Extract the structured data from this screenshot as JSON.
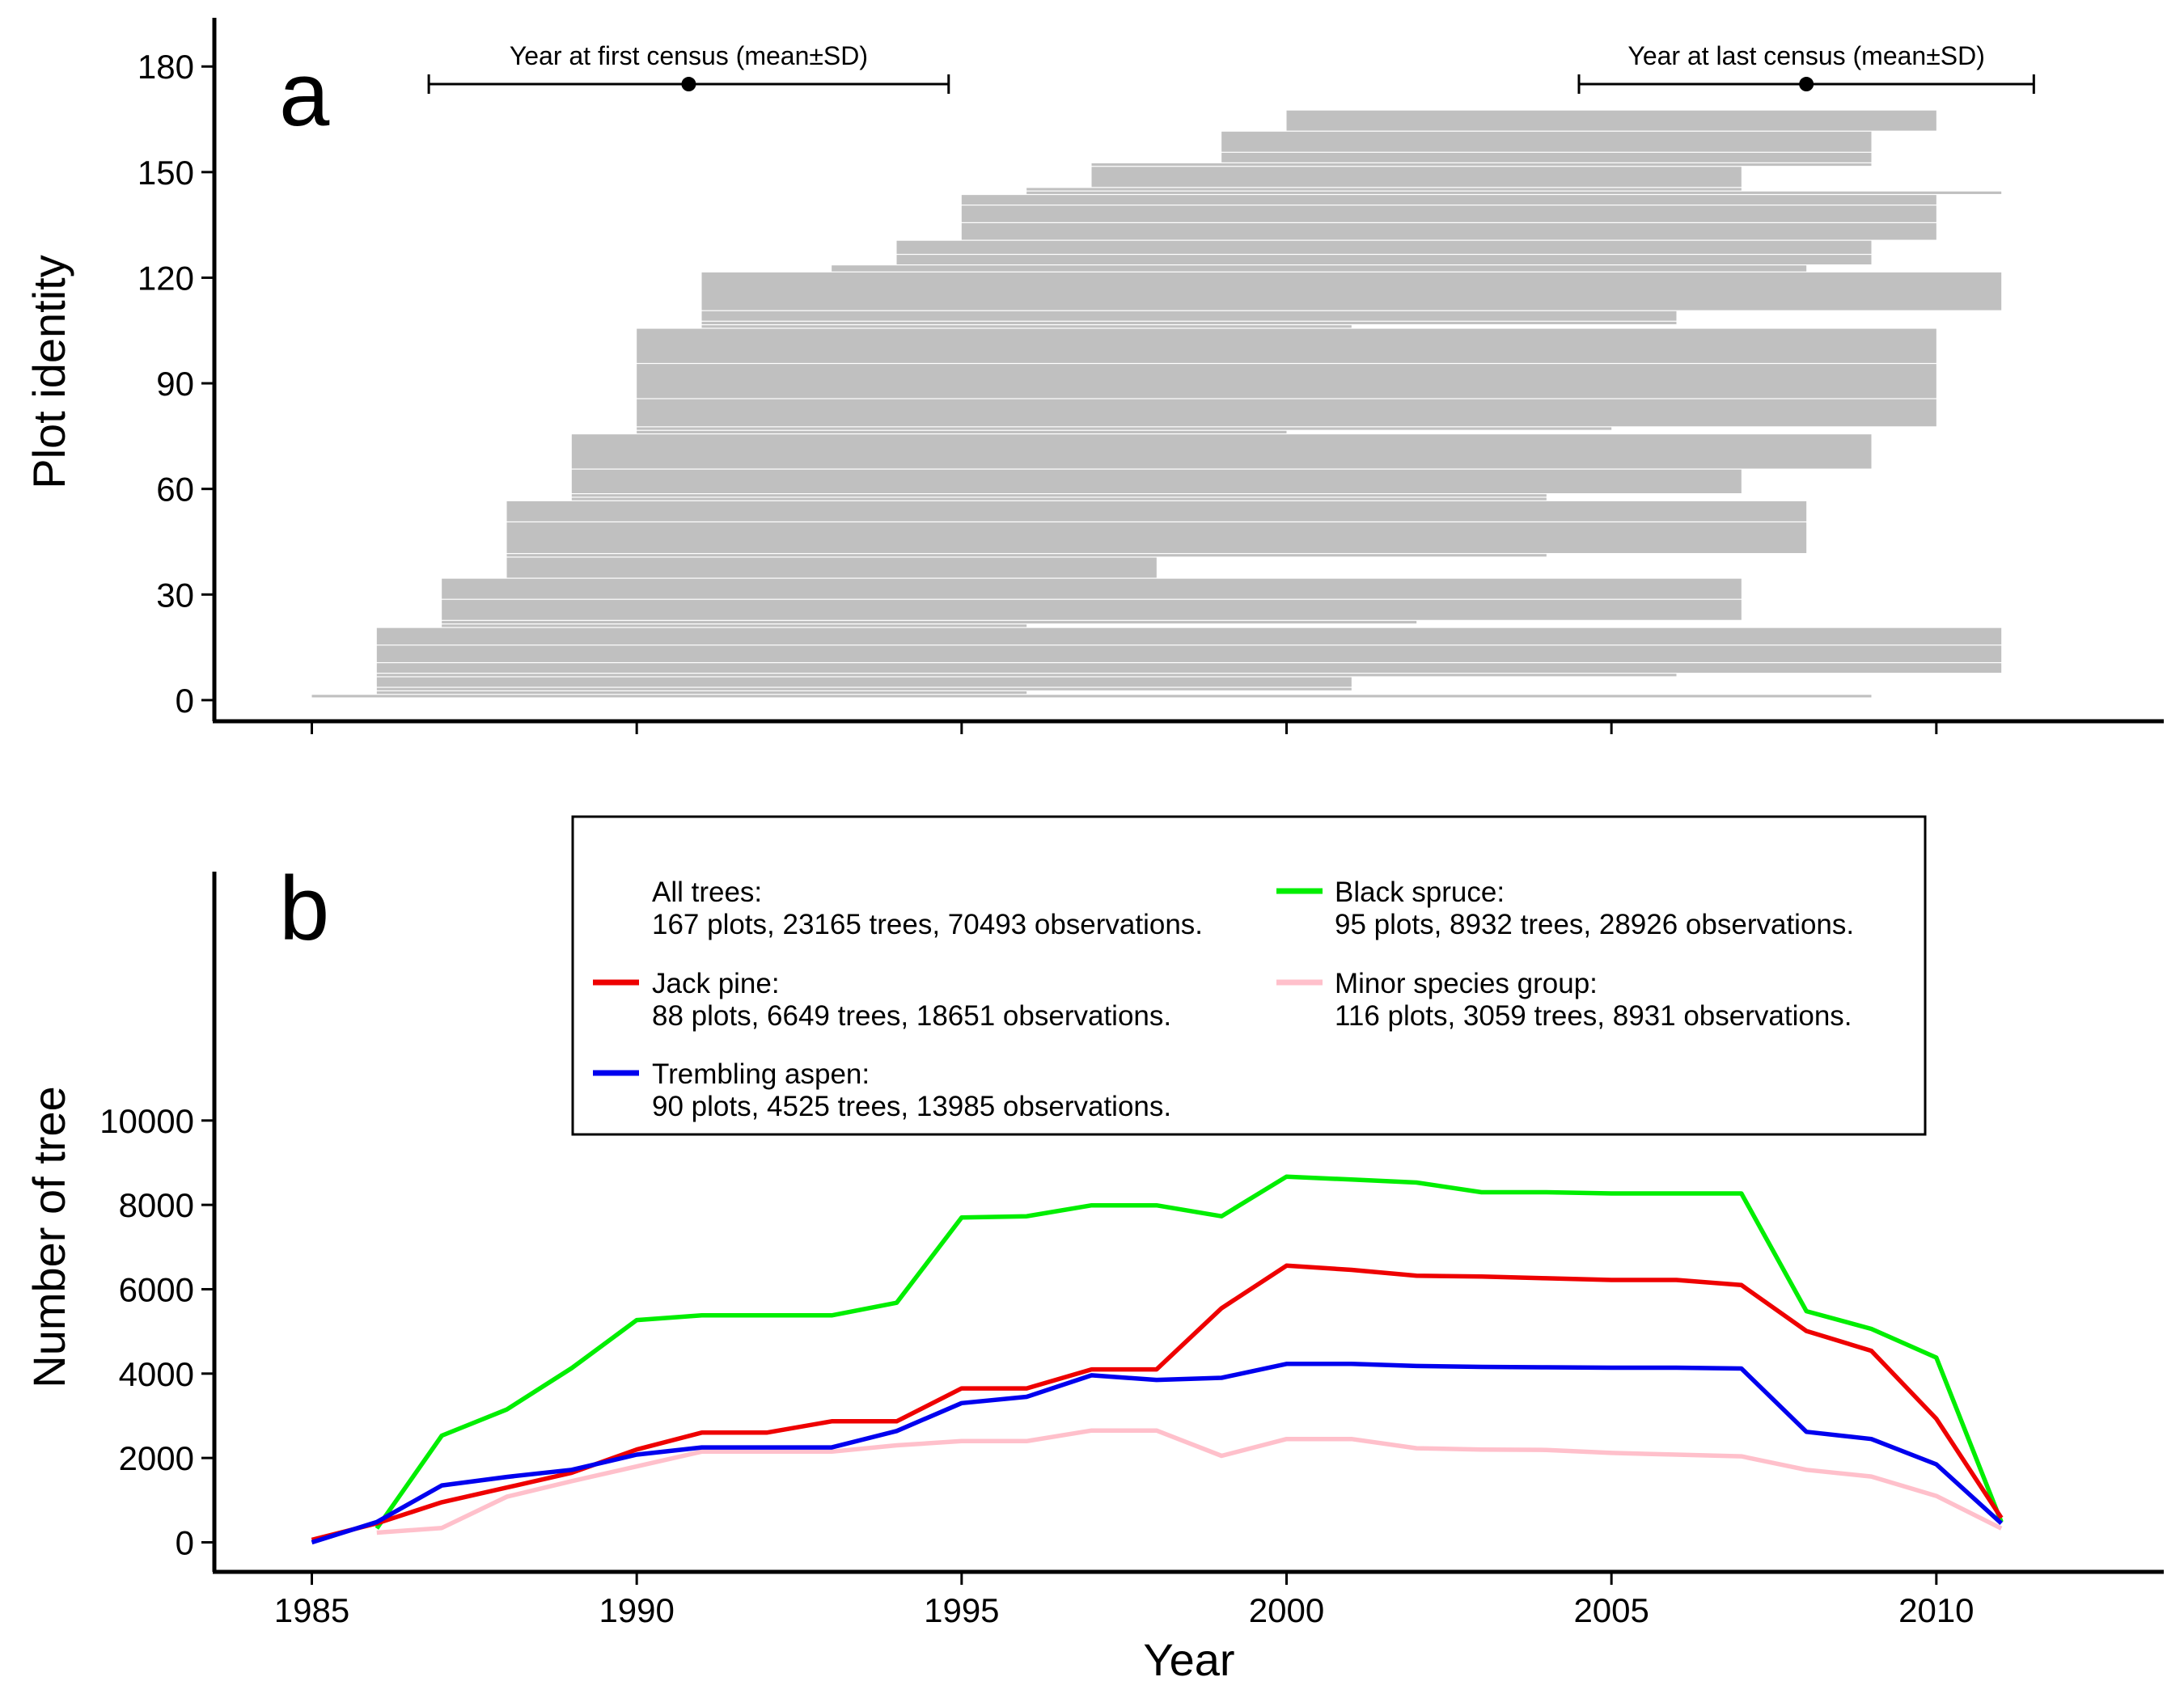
{
  "chart_data": [
    {
      "panel": "a",
      "type": "range-bars",
      "ylabel": "Plot identity",
      "xlim": [
        1983.5,
        2013.5
      ],
      "ylim": [
        -6,
        192
      ],
      "xticks": [
        1985,
        1990,
        1995,
        2000,
        2005,
        2010
      ],
      "yticks": [
        0,
        30,
        60,
        90,
        120,
        150,
        180
      ],
      "bar_color": "#c0c0c0",
      "grid": false,
      "bars": [
        {
          "y0": 0.5,
          "y1": 1.5,
          "start": 1985.0,
          "end": 2009.0
        },
        {
          "y0": 1.5,
          "y1": 2.5,
          "start": 1986.0,
          "end": 1996.0
        },
        {
          "y0": 2.5,
          "y1": 3.5,
          "start": 1986.0,
          "end": 2001.0
        },
        {
          "y0": 3.5,
          "y1": 6.5,
          "start": 1986.0,
          "end": 2001.0
        },
        {
          "y0": 6.5,
          "y1": 7.5,
          "start": 1986.0,
          "end": 2006.0
        },
        {
          "y0": 7.5,
          "y1": 10.5,
          "start": 1986.0,
          "end": 2011.0
        },
        {
          "y0": 10.5,
          "y1": 15.5,
          "start": 1986.0,
          "end": 2011.0
        },
        {
          "y0": 15.5,
          "y1": 20.5,
          "start": 1986.0,
          "end": 2011.0
        },
        {
          "y0": 20.5,
          "y1": 21.5,
          "start": 1987.0,
          "end": 1996.0
        },
        {
          "y0": 21.5,
          "y1": 22.5,
          "start": 1987.0,
          "end": 2002.0
        },
        {
          "y0": 22.5,
          "y1": 28.5,
          "start": 1987.0,
          "end": 2007.0
        },
        {
          "y0": 28.5,
          "y1": 34.5,
          "start": 1987.0,
          "end": 2007.0
        },
        {
          "y0": 34.5,
          "y1": 40.5,
          "start": 1988.0,
          "end": 1998.0
        },
        {
          "y0": 40.5,
          "y1": 41.5,
          "start": 1988.0,
          "end": 2004.0
        },
        {
          "y0": 41.5,
          "y1": 50.5,
          "start": 1988.0,
          "end": 2008.0
        },
        {
          "y0": 50.5,
          "y1": 56.5,
          "start": 1988.0,
          "end": 2008.0
        },
        {
          "y0": 56.5,
          "y1": 57.5,
          "start": 1989.0,
          "end": 2004.0
        },
        {
          "y0": 57.5,
          "y1": 58.5,
          "start": 1989.0,
          "end": 2004.0
        },
        {
          "y0": 58.5,
          "y1": 65.5,
          "start": 1989.0,
          "end": 2007.0
        },
        {
          "y0": 65.5,
          "y1": 75.5,
          "start": 1989.0,
          "end": 2009.0
        },
        {
          "y0": 75.5,
          "y1": 76.5,
          "start": 1990.0,
          "end": 2000.0
        },
        {
          "y0": 76.5,
          "y1": 77.5,
          "start": 1990.0,
          "end": 2005.0
        },
        {
          "y0": 77.5,
          "y1": 85.5,
          "start": 1990.0,
          "end": 2010.0
        },
        {
          "y0": 85.5,
          "y1": 95.5,
          "start": 1990.0,
          "end": 2010.0
        },
        {
          "y0": 95.5,
          "y1": 105.5,
          "start": 1990.0,
          "end": 2010.0
        },
        {
          "y0": 105.5,
          "y1": 106.5,
          "start": 1991.0,
          "end": 2001.0
        },
        {
          "y0": 106.5,
          "y1": 107.5,
          "start": 1991.0,
          "end": 2006.0
        },
        {
          "y0": 107.5,
          "y1": 110.5,
          "start": 1991.0,
          "end": 2006.0
        },
        {
          "y0": 110.5,
          "y1": 121.5,
          "start": 1991.0,
          "end": 2011.0
        },
        {
          "y0": 121.5,
          "y1": 123.5,
          "start": 1993.0,
          "end": 2008.0
        },
        {
          "y0": 123.5,
          "y1": 126.5,
          "start": 1994.0,
          "end": 2009.0
        },
        {
          "y0": 126.5,
          "y1": 130.5,
          "start": 1994.0,
          "end": 2009.0
        },
        {
          "y0": 130.5,
          "y1": 135.5,
          "start": 1995.0,
          "end": 2010.0
        },
        {
          "y0": 135.5,
          "y1": 140.5,
          "start": 1995.0,
          "end": 2010.0
        },
        {
          "y0": 140.5,
          "y1": 143.5,
          "start": 1995.0,
          "end": 2010.0
        },
        {
          "y0": 143.5,
          "y1": 144.5,
          "start": 1996.0,
          "end": 2011.0
        },
        {
          "y0": 144.5,
          "y1": 145.5,
          "start": 1996.0,
          "end": 2007.0
        },
        {
          "y0": 145.5,
          "y1": 151.5,
          "start": 1997.0,
          "end": 2007.0
        },
        {
          "y0": 151.5,
          "y1": 152.5,
          "start": 1997.0,
          "end": 2009.0
        },
        {
          "y0": 152.5,
          "y1": 155.5,
          "start": 1999.0,
          "end": 2009.0
        },
        {
          "y0": 155.5,
          "y1": 161.5,
          "start": 1999.0,
          "end": 2009.0
        },
        {
          "y0": 161.5,
          "y1": 167.5,
          "start": 2000.0,
          "end": 2010.0
        }
      ],
      "annotations": [
        {
          "label": "Year at first census (mean±SD)",
          "mean": 1990.8,
          "sd": 4.0,
          "y": 175
        },
        {
          "label": "Year at last census (mean±SD)",
          "mean": 2008.0,
          "sd": 3.5,
          "y": 175
        }
      ]
    },
    {
      "panel": "b",
      "type": "line",
      "xlabel": "Year",
      "ylabel": "Number of tree",
      "xlim": [
        1983.5,
        2013.5
      ],
      "ylim": [
        -700,
        15900
      ],
      "xticks": [
        1985,
        1990,
        1995,
        2000,
        2005,
        2010
      ],
      "yticks": [
        0,
        2000,
        4000,
        6000,
        8000,
        10000
      ],
      "grid": false,
      "legend_position": "top",
      "legend": [
        {
          "series": "All trees",
          "title": "All trees:",
          "text": "167 plots, 23165 trees, 70493 observations."
        },
        {
          "series": "Jack pine",
          "title": "Jack pine:",
          "text": "88 plots, 6649 trees, 18651 observations."
        },
        {
          "series": "Trembling aspen",
          "title": "Trembling aspen:",
          "text": "90 plots, 4525 trees, 13985 observations."
        },
        {
          "series": "Black spruce",
          "title": "Black spruce:",
          "text": "95 plots, 8932 trees, 28926 observations."
        },
        {
          "series": "Minor species group",
          "title": "Minor species group:",
          "text": "116 plots, 3059 trees, 8931 observations."
        }
      ],
      "series": [
        {
          "name": "Minor species group",
          "color": "#ffc0cb",
          "x": [
            1986,
            1987,
            1988,
            1989,
            1990,
            1991,
            1992,
            1993,
            1994,
            1995,
            1996,
            1997,
            1998,
            1999,
            2000,
            2001,
            2002,
            2003,
            2004,
            2005,
            2006,
            2007,
            2008,
            2009,
            2010,
            2011
          ],
          "values": [
            230,
            340,
            1080,
            1450,
            1800,
            2150,
            2150,
            2150,
            2300,
            2400,
            2400,
            2650,
            2650,
            2050,
            2450,
            2450,
            2230,
            2200,
            2190,
            2120,
            2080,
            2040,
            1720,
            1560,
            1100,
            330
          ]
        },
        {
          "name": "Black spruce",
          "color": "#00ee00",
          "x": [
            1986,
            1987,
            1988,
            1989,
            1990,
            1991,
            1992,
            1993,
            1994,
            1995,
            1996,
            1997,
            1998,
            1999,
            2000,
            2001,
            2002,
            2003,
            2004,
            2005,
            2006,
            2007,
            2008,
            2009,
            2010,
            2011
          ],
          "values": [
            330,
            2530,
            3150,
            4130,
            5270,
            5380,
            5380,
            5380,
            5680,
            7700,
            7730,
            7990,
            7990,
            7730,
            8670,
            8600,
            8530,
            8300,
            8300,
            8270,
            8270,
            8270,
            5480,
            5060,
            4380,
            480
          ]
        },
        {
          "name": "Jack pine",
          "color": "#ee0000",
          "x": [
            1985,
            1986,
            1987,
            1988,
            1989,
            1990,
            1991,
            1992,
            1993,
            1994,
            1995,
            1996,
            1997,
            1998,
            1999,
            2000,
            2001,
            2002,
            2003,
            2004,
            2005,
            2006,
            2007,
            2008,
            2009,
            2010,
            2011
          ],
          "values": [
            60,
            450,
            950,
            1300,
            1650,
            2200,
            2600,
            2600,
            2870,
            2870,
            3650,
            3650,
            4100,
            4100,
            5550,
            6560,
            6460,
            6320,
            6300,
            6260,
            6220,
            6220,
            6100,
            5010,
            4540,
            2930,
            580
          ]
        },
        {
          "name": "Trembling aspen",
          "color": "#0000ee",
          "x": [
            1985,
            1986,
            1987,
            1988,
            1989,
            1990,
            1991,
            1992,
            1993,
            1994,
            1995,
            1996,
            1997,
            1998,
            1999,
            2000,
            2001,
            2002,
            2003,
            2004,
            2005,
            2006,
            2007,
            2008,
            2009,
            2010,
            2011
          ],
          "values": [
            0,
            480,
            1350,
            1550,
            1720,
            2080,
            2250,
            2250,
            2250,
            2640,
            3300,
            3450,
            3960,
            3850,
            3900,
            4230,
            4230,
            4180,
            4160,
            4150,
            4140,
            4140,
            4120,
            2620,
            2450,
            1850,
            450
          ]
        }
      ]
    }
  ]
}
